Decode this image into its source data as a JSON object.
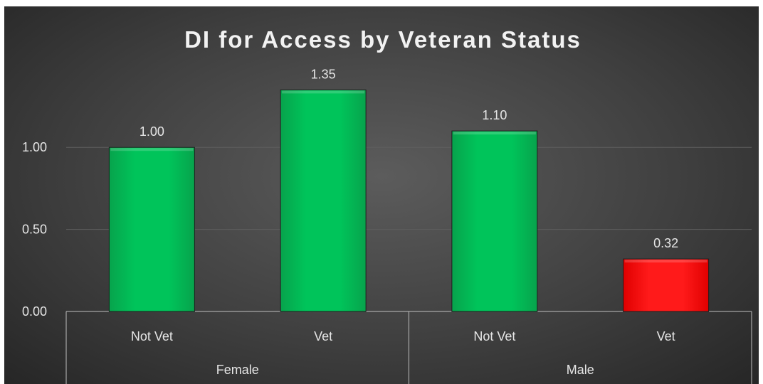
{
  "chart_data": {
    "type": "bar",
    "title": "DI for Access by Veteran Status",
    "xlabel": "",
    "ylabel": "",
    "ylim": [
      0,
      1.4
    ],
    "yticks": [
      "0.00",
      "0.50",
      "1.00"
    ],
    "grid": true,
    "groups": [
      {
        "label": "Female",
        "categories": [
          "Not Vet",
          "Vet"
        ]
      },
      {
        "label": "Male",
        "categories": [
          "Not Vet",
          "Vet"
        ]
      }
    ],
    "categories": [
      "Not Vet",
      "Vet",
      "Not Vet",
      "Vet"
    ],
    "values": [
      1.0,
      1.35,
      1.1,
      0.32
    ],
    "data_labels": [
      "1.00",
      "1.35",
      "1.10",
      "0.32"
    ],
    "bar_colors": [
      "#00b050",
      "#00b050",
      "#00b050",
      "#ff0000"
    ]
  }
}
